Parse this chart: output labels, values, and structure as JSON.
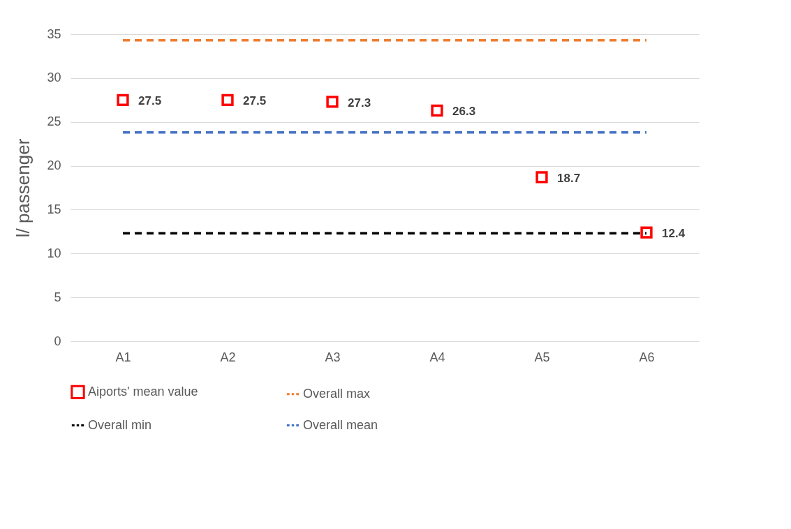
{
  "chart_data": {
    "type": "scatter",
    "ylabel": "l/ passenger",
    "categories": [
      "A1",
      "A2",
      "A3",
      "A4",
      "A5",
      "A6"
    ],
    "series": [
      {
        "name": "Aiports' mean value",
        "color": "#ff0000",
        "values": [
          27.5,
          27.5,
          27.3,
          26.3,
          18.7,
          12.4
        ],
        "value_labels": [
          "27.5",
          "27.5",
          "27.3",
          "26.3",
          "18.7",
          "12.4"
        ]
      },
      {
        "name": "Overall max",
        "type": "line",
        "marker": "none",
        "color": "#ed7d31",
        "values": [
          34.3,
          34.3,
          34.3,
          34.3,
          34.3,
          34.3
        ]
      },
      {
        "name": "Overall min",
        "type": "line",
        "marker": "none",
        "color": "#000000",
        "values": [
          12.3,
          12.3,
          12.3,
          12.3,
          12.3,
          12.3
        ]
      },
      {
        "name": "Overall mean",
        "type": "line",
        "marker": "none",
        "color": "#4472c4",
        "values": [
          23.8,
          23.8,
          23.8,
          23.8,
          23.8,
          23.8
        ]
      }
    ],
    "ylim": [
      0,
      35
    ],
    "yticks": [
      0,
      5,
      10,
      15,
      20,
      25,
      30,
      35
    ],
    "grid": "y",
    "legend": "bottom",
    "marker": "square",
    "line_style": "dashed"
  }
}
